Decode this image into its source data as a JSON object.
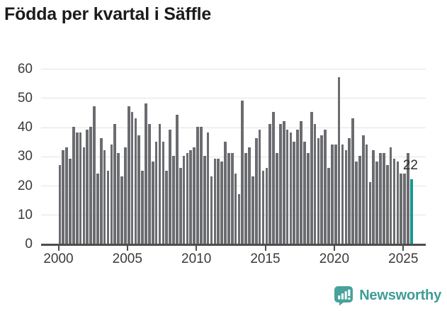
{
  "title": "Födda per kvartal i Säffle",
  "annotation": {
    "last_value_label": "22"
  },
  "logo": {
    "text": "Newsworthy"
  },
  "colors": {
    "bar": "#6b6c70",
    "highlight": "#16988e",
    "logo": "#3f9c96",
    "title": "#1b1b1b",
    "axis_text": "#3a3a3a",
    "gridline": "#e3e3e3",
    "axis_line": "#4d4d4d"
  },
  "chart_data": {
    "type": "bar",
    "title": "Födda per kvartal i Säffle",
    "xlabel": "",
    "ylabel": "",
    "start_period": "2000-Q1",
    "end_period": "2025-Q3",
    "periodicity": "quarterly",
    "x_tick_labels": [
      "2000",
      "2005",
      "2010",
      "2015",
      "2020",
      "2025"
    ],
    "y_ticks": [
      0,
      10,
      20,
      30,
      40,
      50,
      60
    ],
    "ylim": [
      0,
      62
    ],
    "grid": "horizontal",
    "legend": "none",
    "highlight_last_bar": true,
    "last_bar_label": "22",
    "values": [
      27,
      32,
      33,
      29,
      40,
      38,
      38,
      33,
      39,
      40,
      47,
      24,
      36,
      32,
      25,
      34,
      41,
      31,
      23,
      33,
      47,
      45,
      43,
      37,
      25,
      48,
      41,
      28,
      35,
      41,
      35,
      25,
      39,
      30,
      44,
      26,
      30,
      31,
      32,
      33,
      40,
      40,
      30,
      38,
      23,
      29,
      29,
      28,
      35,
      31,
      31,
      24,
      17,
      49,
      31,
      33,
      23,
      36,
      39,
      25,
      26,
      41,
      45,
      31,
      41,
      42,
      39,
      38,
      35,
      39,
      42,
      35,
      31,
      45,
      41,
      36,
      37,
      39,
      26,
      34,
      34,
      57,
      34,
      32,
      36,
      43,
      28,
      30,
      37,
      34,
      21,
      32,
      28,
      31,
      31,
      27,
      33,
      29,
      28,
      24,
      24,
      31,
      22
    ]
  }
}
